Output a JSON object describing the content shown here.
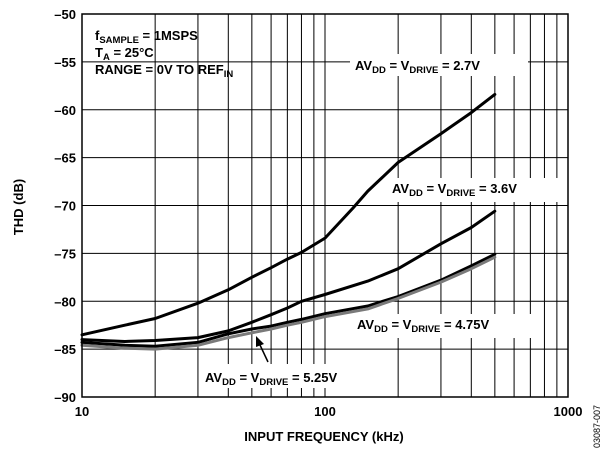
{
  "chart_data": {
    "type": "line",
    "xscale": "log",
    "xlim": [
      10,
      1000
    ],
    "ylim": [
      -90,
      -50
    ],
    "grid": true,
    "xlabel": "INPUT FREQUENCY (kHz)",
    "ylabel": "THD (dB)",
    "x_ticks": [
      "10",
      "100",
      "1000"
    ],
    "y_ticks": [
      "–50",
      "–55",
      "–60",
      "–65",
      "–70",
      "–75",
      "–80",
      "–85",
      "–90"
    ],
    "conditions": {
      "line1": {
        "f": "f",
        "sub": "SAMPLE",
        "rest": " = 1MSPS"
      },
      "line2": {
        "t": "T",
        "sub": "A",
        "rest": " = 25°C"
      },
      "line3": {
        "text": "RANGE = 0V TO REF",
        "sub": "IN"
      }
    },
    "figure_id": "03087-007",
    "series": [
      {
        "name": "AVDD = VDRIVE = 2.7V",
        "label_parts": {
          "a": "AV",
          "a_sub": "DD",
          "b": " = V",
          "b_sub": "DRIVE",
          "c": " = 2.7V"
        },
        "color": "#000000",
        "x": [
          10,
          15,
          20,
          30,
          40,
          50,
          60,
          70,
          80,
          100,
          130,
          150,
          200,
          300,
          400,
          500
        ],
        "y": [
          -83.5,
          -82.5,
          -81.8,
          -80.2,
          -78.8,
          -77.5,
          -76.5,
          -75.6,
          -74.9,
          -73.4,
          -70.3,
          -68.5,
          -65.5,
          -62.5,
          -60.3,
          -58.4
        ]
      },
      {
        "name": "AVDD = VDRIVE = 3.6V",
        "label_parts": {
          "a": "AV",
          "a_sub": "DD",
          "b": " = V",
          "b_sub": "DRIVE",
          "c": " = 3.6V"
        },
        "color": "#000000",
        "x": [
          10,
          15,
          20,
          30,
          40,
          50,
          60,
          70,
          80,
          100,
          150,
          200,
          300,
          400,
          500
        ],
        "y": [
          -84.0,
          -84.2,
          -84.1,
          -83.8,
          -83.1,
          -82.2,
          -81.4,
          -80.7,
          -80.0,
          -79.3,
          -77.9,
          -76.6,
          -74.0,
          -72.3,
          -70.6
        ]
      },
      {
        "name": "AVDD = VDRIVE = 4.75V",
        "label_parts": {
          "a": "AV",
          "a_sub": "DD",
          "b": " = V",
          "b_sub": "DRIVE",
          "c": " = 4.75V"
        },
        "color": "#000000",
        "x": [
          10,
          15,
          20,
          30,
          40,
          50,
          60,
          70,
          80,
          100,
          150,
          200,
          300,
          400,
          500
        ],
        "y": [
          -84.3,
          -84.6,
          -84.7,
          -84.3,
          -83.4,
          -82.9,
          -82.6,
          -82.2,
          -81.9,
          -81.3,
          -80.5,
          -79.5,
          -77.8,
          -76.3,
          -75.1
        ]
      },
      {
        "name": "AVDD = VDRIVE = 5.25V",
        "label_parts": {
          "a": "AV",
          "a_sub": "DD",
          "b": " = V",
          "b_sub": "DRIVE",
          "c": " = 5.25V"
        },
        "color": "#7a7a7a",
        "x": [
          10,
          15,
          20,
          30,
          40,
          50,
          60,
          70,
          80,
          100,
          150,
          200,
          300,
          400,
          500
        ],
        "y": [
          -84.6,
          -84.9,
          -85.0,
          -84.6,
          -83.8,
          -83.3,
          -82.9,
          -82.5,
          -82.2,
          -81.6,
          -80.8,
          -79.7,
          -78.0,
          -76.6,
          -75.4
        ]
      }
    ]
  }
}
